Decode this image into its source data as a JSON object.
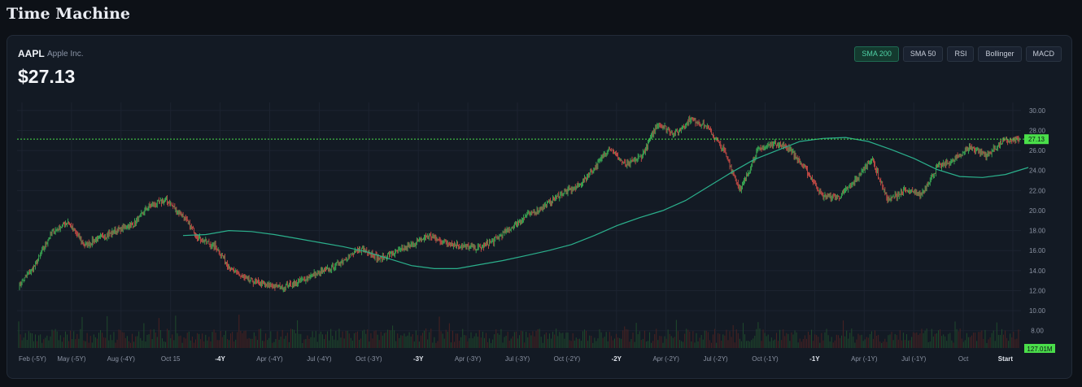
{
  "page": {
    "title": "Time Machine"
  },
  "quote": {
    "ticker": "AAPL",
    "company": "Apple Inc.",
    "price": "$27.13"
  },
  "indicators": [
    {
      "label": "SMA 200",
      "active": true
    },
    {
      "label": "SMA 50",
      "active": false
    },
    {
      "label": "RSI",
      "active": false
    },
    {
      "label": "Bollinger",
      "active": false
    },
    {
      "label": "MACD",
      "active": false
    }
  ],
  "colors": {
    "up": "#3fbf5a",
    "down": "#e0524a",
    "sma": "#2bb08c",
    "price_line": "#4ade4a",
    "grid": "#1c2330"
  },
  "chart_data": {
    "type": "line",
    "x_tick_labels": [
      "Feb (-5Y)",
      "May (-5Y)",
      "Aug (-4Y)",
      "Oct 15",
      "-4Y",
      "Apr (-4Y)",
      "Jul (-4Y)",
      "Oct (-3Y)",
      "-3Y",
      "Apr (-3Y)",
      "Jul (-3Y)",
      "Oct (-2Y)",
      "-2Y",
      "Apr (-2Y)",
      "Jul (-2Y)",
      "Oct (-1Y)",
      "-1Y",
      "Apr (-1Y)",
      "Jul (-1Y)",
      "Oct",
      "Start"
    ],
    "x_tick_bold": [
      "-4Y",
      "-3Y",
      "-2Y",
      "-1Y",
      "Start"
    ],
    "y_ticks": [
      8,
      10,
      12,
      14,
      16,
      18,
      20,
      22,
      24,
      26,
      28,
      30
    ],
    "ylim": [
      7,
      30.8
    ],
    "grid": true,
    "price_anchors": [
      12.5,
      14.5,
      17.8,
      18.9,
      16.5,
      17.3,
      18.0,
      18.6,
      20.5,
      21.0,
      19.5,
      17.2,
      16.4,
      14.0,
      13.0,
      12.6,
      12.3,
      12.8,
      13.6,
      14.2,
      15.3,
      16.2,
      15.2,
      15.8,
      16.6,
      17.5,
      16.8,
      16.5,
      16.2,
      17.0,
      18.3,
      19.5,
      20.4,
      21.6,
      22.3,
      24.0,
      26.3,
      24.5,
      25.5,
      28.8,
      27.6,
      29.2,
      28.3,
      26.0,
      22.0,
      25.9,
      26.8,
      26.2,
      24.0,
      21.5,
      21.3,
      23.0,
      25.2,
      21.0,
      22.0,
      21.6,
      24.3,
      25.0,
      26.4,
      25.5,
      26.9,
      27.13
    ],
    "sma_200": [
      17.5,
      17.6,
      18.0,
      17.9,
      17.6,
      17.2,
      16.8,
      16.4,
      15.9,
      15.2,
      14.5,
      14.2,
      14.2,
      14.6,
      15.0,
      15.5,
      16.0,
      16.6,
      17.5,
      18.5,
      19.3,
      20.0,
      21.0,
      22.4,
      23.8,
      25.1,
      26.0,
      26.9,
      27.2,
      27.3,
      26.9,
      26.1,
      25.2,
      24.1,
      23.4,
      23.3,
      23.6,
      24.3
    ],
    "last_price": "27.13",
    "last_volume": "127.01M"
  }
}
